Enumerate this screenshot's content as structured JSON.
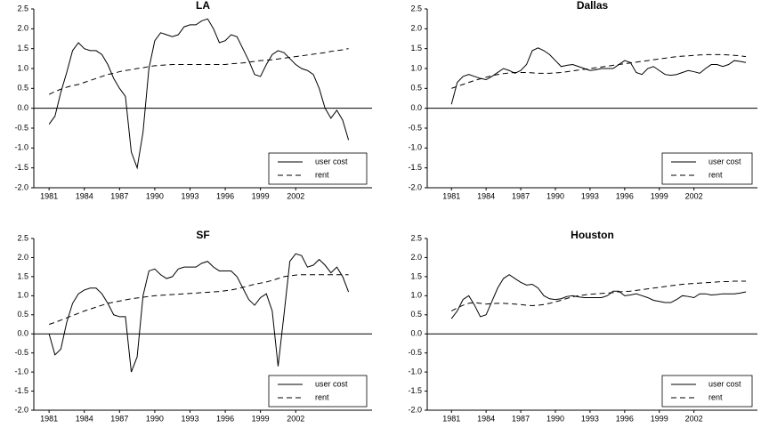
{
  "chart_data": [
    {
      "type": "line",
      "title": "LA",
      "x": [
        1981,
        1981.5,
        1982,
        1982.5,
        1983,
        1983.5,
        1984,
        1984.5,
        1985,
        1985.5,
        1986,
        1986.5,
        1987,
        1987.5,
        1988,
        1988.5,
        1989,
        1989.5,
        1990,
        1990.5,
        1991,
        1991.5,
        1992,
        1992.5,
        1993,
        1993.5,
        1994,
        1994.5,
        1995,
        1995.5,
        1996,
        1996.5,
        1997,
        1997.5,
        1998,
        1998.5,
        1999,
        1999.5,
        2000,
        2000.5,
        2001,
        2001.5,
        2002,
        2002.5,
        2003,
        2003.5,
        2004,
        2004.5,
        2005,
        2005.5,
        2006,
        2006.5
      ],
      "series": [
        {
          "name": "user cost",
          "color": "#000000",
          "style": "solid",
          "values": [
            -0.4,
            -0.2,
            0.4,
            0.9,
            1.45,
            1.65,
            1.5,
            1.45,
            1.45,
            1.35,
            1.1,
            0.75,
            0.5,
            0.3,
            -1.1,
            -1.5,
            -0.6,
            1.0,
            1.7,
            1.9,
            1.85,
            1.8,
            1.85,
            2.05,
            2.1,
            2.1,
            2.2,
            2.25,
            2.0,
            1.65,
            1.7,
            1.85,
            1.8,
            1.5,
            1.2,
            0.85,
            0.8,
            1.1,
            1.35,
            1.45,
            1.4,
            1.25,
            1.1,
            1.0,
            0.95,
            0.85,
            0.5,
            0.0,
            -0.25,
            -0.05,
            -0.3,
            -0.8
          ]
        },
        {
          "name": "rent",
          "color": "#000000",
          "style": "dashed",
          "values": [
            0.35,
            0.42,
            0.48,
            0.53,
            0.57,
            0.6,
            0.65,
            0.7,
            0.75,
            0.8,
            0.85,
            0.88,
            0.92,
            0.95,
            0.97,
            1.0,
            1.02,
            1.05,
            1.07,
            1.08,
            1.09,
            1.1,
            1.1,
            1.1,
            1.1,
            1.1,
            1.1,
            1.1,
            1.1,
            1.1,
            1.1,
            1.12,
            1.13,
            1.14,
            1.16,
            1.18,
            1.2,
            1.21,
            1.22,
            1.24,
            1.26,
            1.28,
            1.3,
            1.32,
            1.34,
            1.36,
            1.38,
            1.4,
            1.43,
            1.45,
            1.47,
            1.5
          ]
        }
      ],
      "xlim": [
        1979.7,
        2008.5
      ],
      "xticks": [
        1981,
        1984,
        1987,
        1990,
        1993,
        1996,
        1999,
        2002
      ],
      "ylim": [
        -2,
        2.5
      ],
      "yticks": [
        {
          "value": -2,
          "label": "-2.0"
        },
        -1.5,
        {
          "value": -1,
          "label": "-1.0"
        },
        -0.5,
        {
          "value": 0,
          "label": "0.0"
        },
        0.5,
        {
          "value": 1,
          "label": "1.0"
        },
        1.5,
        {
          "value": 2,
          "label": "2.0"
        },
        2.5
      ],
      "zero_line": true,
      "legend": "lower right"
    },
    {
      "type": "line",
      "title": "Dallas",
      "x": [
        1981,
        1981.5,
        1982,
        1982.5,
        1983,
        1983.5,
        1984,
        1984.5,
        1985,
        1985.5,
        1986,
        1986.5,
        1987,
        1987.5,
        1988,
        1988.5,
        1989,
        1989.5,
        1990,
        1990.5,
        1991,
        1991.5,
        1992,
        1992.5,
        1993,
        1993.5,
        1994,
        1994.5,
        1995,
        1995.5,
        1996,
        1996.5,
        1997,
        1997.5,
        1998,
        1998.5,
        1999,
        1999.5,
        2000,
        2000.5,
        2001,
        2001.5,
        2002,
        2002.5,
        2003,
        2003.5,
        2004,
        2004.5,
        2005,
        2005.5,
        2006,
        2006.5
      ],
      "series": [
        {
          "name": "user cost",
          "color": "#000000",
          "style": "solid",
          "values": [
            0.1,
            0.65,
            0.8,
            0.85,
            0.8,
            0.75,
            0.72,
            0.8,
            0.9,
            1.0,
            0.95,
            0.88,
            0.95,
            1.1,
            1.45,
            1.52,
            1.45,
            1.35,
            1.2,
            1.05,
            1.08,
            1.1,
            1.05,
            1.0,
            0.95,
            0.97,
            1.0,
            1.0,
            1.0,
            1.1,
            1.2,
            1.15,
            0.9,
            0.85,
            1.0,
            1.05,
            0.95,
            0.85,
            0.83,
            0.85,
            0.9,
            0.95,
            0.92,
            0.88,
            1.0,
            1.1,
            1.1,
            1.05,
            1.1,
            1.2,
            1.18,
            1.15
          ]
        },
        {
          "name": "rent",
          "color": "#000000",
          "style": "dashed",
          "values": [
            0.5,
            0.55,
            0.6,
            0.65,
            0.7,
            0.74,
            0.78,
            0.82,
            0.85,
            0.87,
            0.89,
            0.9,
            0.9,
            0.9,
            0.89,
            0.88,
            0.88,
            0.88,
            0.89,
            0.9,
            0.92,
            0.94,
            0.96,
            0.98,
            1.0,
            1.02,
            1.04,
            1.06,
            1.08,
            1.1,
            1.12,
            1.14,
            1.16,
            1.18,
            1.2,
            1.22,
            1.24,
            1.26,
            1.28,
            1.3,
            1.31,
            1.32,
            1.33,
            1.34,
            1.35,
            1.35,
            1.35,
            1.35,
            1.34,
            1.33,
            1.32,
            1.3
          ]
        }
      ],
      "xlim": [
        1978.9,
        2007.5
      ],
      "xticks": [
        1981,
        1984,
        1987,
        1990,
        1993,
        1996,
        1999,
        2002
      ],
      "ylim": [
        -2,
        2.5
      ],
      "yticks": [
        {
          "value": -2,
          "label": "-2.0"
        },
        -1.5,
        {
          "value": -1,
          "label": "-1.0"
        },
        -0.5,
        {
          "value": 0,
          "label": "0.0"
        },
        0.5,
        {
          "value": 1,
          "label": "1.0"
        },
        1.5,
        {
          "value": 2,
          "label": "2.0"
        },
        2.5
      ],
      "zero_line": true,
      "legend": "lower right"
    },
    {
      "type": "line",
      "title": "SF",
      "x": [
        1981,
        1981.5,
        1982,
        1982.5,
        1983,
        1983.5,
        1984,
        1984.5,
        1985,
        1985.5,
        1986,
        1986.5,
        1987,
        1987.5,
        1988,
        1988.5,
        1989,
        1989.5,
        1990,
        1990.5,
        1991,
        1991.5,
        1992,
        1992.5,
        1993,
        1993.5,
        1994,
        1994.5,
        1995,
        1995.5,
        1996,
        1996.5,
        1997,
        1997.5,
        1998,
        1998.5,
        1999,
        1999.5,
        2000,
        2000.5,
        2001,
        2001.5,
        2002,
        2002.5,
        2003,
        2003.5,
        2004,
        2004.5,
        2005,
        2005.5,
        2006,
        2006.5
      ],
      "series": [
        {
          "name": "user cost",
          "color": "#000000",
          "style": "solid",
          "values": [
            0.0,
            -0.55,
            -0.4,
            0.3,
            0.8,
            1.05,
            1.15,
            1.2,
            1.2,
            1.05,
            0.8,
            0.5,
            0.45,
            0.45,
            -1.0,
            -0.6,
            1.0,
            1.65,
            1.7,
            1.55,
            1.45,
            1.5,
            1.7,
            1.75,
            1.75,
            1.75,
            1.85,
            1.9,
            1.75,
            1.65,
            1.65,
            1.65,
            1.5,
            1.2,
            0.9,
            0.75,
            0.95,
            1.05,
            0.6,
            -0.85,
            0.5,
            1.9,
            2.1,
            2.05,
            1.75,
            1.8,
            1.95,
            1.8,
            1.6,
            1.75,
            1.5,
            1.1
          ]
        },
        {
          "name": "rent",
          "color": "#000000",
          "style": "dashed",
          "values": [
            0.25,
            0.3,
            0.36,
            0.42,
            0.48,
            0.54,
            0.6,
            0.65,
            0.7,
            0.75,
            0.8,
            0.83,
            0.86,
            0.89,
            0.92,
            0.94,
            0.96,
            0.98,
            1.0,
            1.01,
            1.02,
            1.03,
            1.04,
            1.05,
            1.06,
            1.07,
            1.08,
            1.09,
            1.1,
            1.11,
            1.13,
            1.15,
            1.18,
            1.22,
            1.26,
            1.3,
            1.33,
            1.36,
            1.4,
            1.45,
            1.5,
            1.52,
            1.54,
            1.55,
            1.55,
            1.55,
            1.55,
            1.55,
            1.55,
            1.55,
            1.55,
            1.55
          ]
        }
      ],
      "xlim": [
        1979.7,
        2008.5
      ],
      "xticks": [
        1981,
        1984,
        1987,
        1990,
        1993,
        1996,
        1999,
        2002
      ],
      "ylim": [
        -2,
        2.5
      ],
      "yticks": [
        {
          "value": -2,
          "label": "-2.0"
        },
        -1.5,
        {
          "value": -1,
          "label": "-1.0"
        },
        -0.5,
        {
          "value": 0,
          "label": "0.0"
        },
        0.5,
        {
          "value": 1,
          "label": "1.0"
        },
        1.5,
        {
          "value": 2,
          "label": "2.0"
        },
        2.5
      ],
      "zero_line": true,
      "legend": "lower right"
    },
    {
      "type": "line",
      "title": "Houston",
      "x": [
        1981,
        1981.5,
        1982,
        1982.5,
        1983,
        1983.5,
        1984,
        1984.5,
        1985,
        1985.5,
        1986,
        1986.5,
        1987,
        1987.5,
        1988,
        1988.5,
        1989,
        1989.5,
        1990,
        1990.5,
        1991,
        1991.5,
        1992,
        1992.5,
        1993,
        1993.5,
        1994,
        1994.5,
        1995,
        1995.5,
        1996,
        1996.5,
        1997,
        1997.5,
        1998,
        1998.5,
        1999,
        1999.5,
        2000,
        2000.5,
        2001,
        2001.5,
        2002,
        2002.5,
        2003,
        2003.5,
        2004,
        2004.5,
        2005,
        2005.5,
        2006,
        2006.5
      ],
      "series": [
        {
          "name": "user cost",
          "color": "#000000",
          "style": "solid",
          "values": [
            0.4,
            0.6,
            0.9,
            1.0,
            0.75,
            0.45,
            0.5,
            0.85,
            1.2,
            1.45,
            1.55,
            1.45,
            1.35,
            1.28,
            1.3,
            1.2,
            1.0,
            0.92,
            0.9,
            0.92,
            0.98,
            1.0,
            0.97,
            0.95,
            0.95,
            0.95,
            0.95,
            1.0,
            1.12,
            1.12,
            1.0,
            1.02,
            1.05,
            1.0,
            0.95,
            0.88,
            0.85,
            0.82,
            0.82,
            0.9,
            1.0,
            0.98,
            0.95,
            1.05,
            1.05,
            1.02,
            1.03,
            1.05,
            1.05,
            1.05,
            1.07,
            1.1
          ]
        },
        {
          "name": "rent",
          "color": "#000000",
          "style": "dashed",
          "values": [
            0.6,
            0.68,
            0.75,
            0.8,
            0.82,
            0.8,
            0.78,
            0.79,
            0.8,
            0.8,
            0.79,
            0.78,
            0.77,
            0.75,
            0.74,
            0.75,
            0.77,
            0.8,
            0.84,
            0.88,
            0.93,
            0.97,
            1.0,
            1.02,
            1.04,
            1.05,
            1.06,
            1.07,
            1.08,
            1.1,
            1.11,
            1.12,
            1.14,
            1.16,
            1.18,
            1.2,
            1.22,
            1.24,
            1.26,
            1.28,
            1.3,
            1.31,
            1.32,
            1.33,
            1.34,
            1.35,
            1.36,
            1.37,
            1.37,
            1.38,
            1.38,
            1.38
          ]
        }
      ],
      "xlim": [
        1978.9,
        2007.5
      ],
      "xticks": [
        1981,
        1984,
        1987,
        1990,
        1993,
        1996,
        1999,
        2002
      ],
      "ylim": [
        -2,
        2.5
      ],
      "yticks": [
        {
          "value": -2,
          "label": "-2.0"
        },
        -1.5,
        {
          "value": -1,
          "label": "-1.0"
        },
        -0.5,
        {
          "value": 0,
          "label": "0.0"
        },
        0.5,
        {
          "value": 1,
          "label": "1.0"
        },
        1.5,
        {
          "value": 2,
          "label": "2.0"
        },
        2.5
      ],
      "zero_line": true,
      "legend": "lower right"
    }
  ]
}
